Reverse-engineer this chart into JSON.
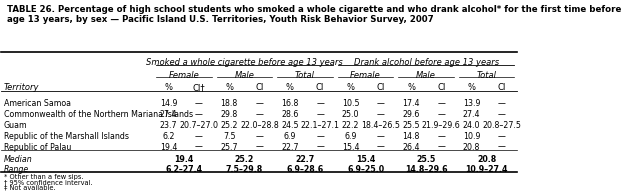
{
  "title": "TABLE 26. Percentage of high school students who smoked a whole cigarette and who drank alcohol* for the first time before\nage 13 years, by sex — Pacific Island U.S. Territories, Youth Risk Behavior Survey, 2007",
  "group1_header": "Smoked a whole cigarette before age 13 years",
  "group2_header": "Drank alcohol before age 13 years",
  "subheaders": [
    "Female",
    "Male",
    "Total",
    "Female",
    "Male",
    "Total"
  ],
  "col_headers": [
    "%",
    "CI†",
    "%",
    "CI",
    "%",
    "CI",
    "%",
    "CI",
    "%",
    "CI",
    "%",
    "CI"
  ],
  "territory_col": "Territory",
  "rows": [
    [
      "American Samoa",
      "14.9",
      "—",
      "18.8",
      "—",
      "16.8",
      "—",
      "10.5",
      "—",
      "17.4",
      "—",
      "13.9",
      "—"
    ],
    [
      "Commonwealth of the Northern Mariana Islands",
      "27.4",
      "—",
      "29.8",
      "—",
      "28.6",
      "—",
      "25.0",
      "—",
      "29.6",
      "—",
      "27.4",
      "—"
    ],
    [
      "Guam",
      "23.7",
      "20.7–27.0",
      "25.2",
      "22.0–28.8",
      "24.5",
      "22.1–27.1",
      "22.2",
      "18.4–26.5",
      "25.5",
      "21.9–29.6",
      "24.0",
      "20.8–27.5"
    ],
    [
      "Republic of the Marshall Islands",
      "6.2",
      "—",
      "7.5",
      "—",
      "6.9",
      "—",
      "6.9",
      "—",
      "14.8",
      "—",
      "10.9",
      "—"
    ],
    [
      "Republic of Palau",
      "19.4",
      "—",
      "25.7",
      "—",
      "22.7",
      "—",
      "15.4",
      "—",
      "26.4",
      "—",
      "20.8",
      "—"
    ]
  ],
  "median_row": [
    "Median",
    "19.4",
    "",
    "25.2",
    "",
    "22.7",
    "",
    "15.4",
    "",
    "25.5",
    "",
    "20.8",
    ""
  ],
  "range_row": [
    "Range",
    "6.2–27.4",
    "",
    "7.5–29.8",
    "",
    "6.9–28.6",
    "",
    "6.9–25.0",
    "",
    "14.8–29.6",
    "",
    "10.9–27.4",
    ""
  ],
  "footnotes": [
    "* Other than a few sips.",
    "† 95% confidence interval.",
    "‡ Not available."
  ],
  "bg_color": "#FFFFFF",
  "line_color": "#000000",
  "text_color": "#000000",
  "font_size": 6.0,
  "title_font_size": 6.2
}
